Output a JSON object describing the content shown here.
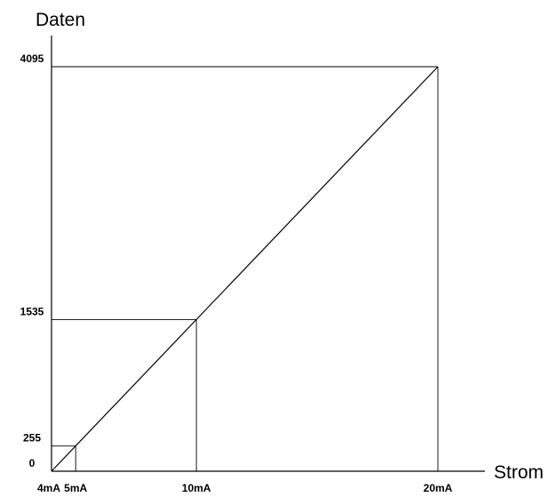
{
  "chart_data": {
    "type": "line",
    "ylabel": "Daten",
    "xlabel": "Strom",
    "x_ticks": [
      {
        "value": 4,
        "label": "4mA"
      },
      {
        "value": 5,
        "label": "5mA"
      },
      {
        "value": 10,
        "label": "10mA"
      },
      {
        "value": 20,
        "label": "20mA"
      }
    ],
    "y_ticks": [
      {
        "value": 0,
        "label": "0"
      },
      {
        "value": 255,
        "label": "255"
      },
      {
        "value": 1535,
        "label": "1535"
      },
      {
        "value": 4095,
        "label": "4095"
      }
    ],
    "xlim": [
      4,
      20
    ],
    "ylim": [
      0,
      4095
    ],
    "series": [
      {
        "x": [
          4,
          20
        ],
        "y": [
          0,
          4095
        ]
      }
    ],
    "guides": [
      {
        "x": 5,
        "y": 255
      },
      {
        "x": 10,
        "y": 1535
      },
      {
        "x": 20,
        "y": 4095
      }
    ],
    "grid": false,
    "colors": {
      "line": "#000000",
      "background": "#ffffff"
    }
  }
}
